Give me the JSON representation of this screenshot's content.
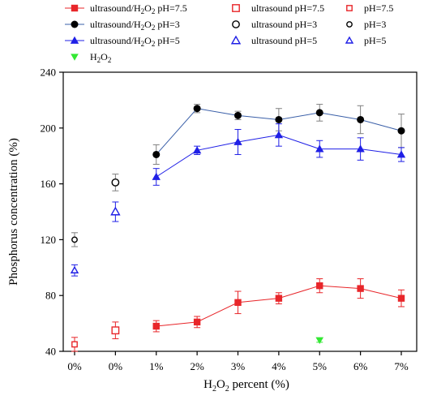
{
  "chart_data": {
    "type": "line",
    "xlabel": {
      "main": "H",
      "sub": "2",
      "rest": "O",
      "sub2": "2",
      "tail": " percent (%)"
    },
    "ylabel": "Phosphorus concentration (%)",
    "ylim": [
      40,
      240
    ],
    "yticks": [
      40,
      80,
      120,
      160,
      200,
      240
    ],
    "categories": [
      "0%",
      "0%",
      "1%",
      "2%",
      "3%",
      "4%",
      "5%",
      "6%",
      "7%"
    ],
    "grid": false,
    "legend_position": "top",
    "legend": [
      {
        "key": "ultrasound_h2o2_ph75",
        "parts": [
          "ultrasound/H",
          "2",
          "O",
          "2",
          " pH=7.5"
        ]
      },
      {
        "key": "ultrasound_h2o2_ph3",
        "parts": [
          "ultrasound/H",
          "2",
          "O",
          "2",
          " pH=3"
        ]
      },
      {
        "key": "ultrasound_h2o2_ph5",
        "parts": [
          "ultrasound/H",
          "2",
          "O",
          "2",
          " pH=5"
        ]
      },
      {
        "key": "h2o2",
        "parts": [
          "H",
          "2",
          "O",
          "2",
          ""
        ]
      },
      {
        "key": "ultrasound_ph75",
        "parts": [
          "ultrasound pH=7.5"
        ]
      },
      {
        "key": "ultrasound_ph3",
        "parts": [
          "ultrasound pH=3"
        ]
      },
      {
        "key": "ultrasound_ph5",
        "parts": [
          "ultrasound pH=5"
        ]
      },
      {
        "key": "ph75",
        "parts": [
          "pH=7.5"
        ]
      },
      {
        "key": "ph3",
        "parts": [
          "pH=3"
        ]
      },
      {
        "key": "ph5",
        "parts": [
          "pH=5"
        ]
      }
    ],
    "series": [
      {
        "key": "ultrasound_h2o2_ph75",
        "color": "#e8262a",
        "marker": "square-filled",
        "line": true,
        "points": [
          {
            "x": "1%",
            "xi": 2,
            "y": 58,
            "err": 4
          },
          {
            "x": "2%",
            "xi": 3,
            "y": 61,
            "err": 4
          },
          {
            "x": "3%",
            "xi": 4,
            "y": 75,
            "err": 8
          },
          {
            "x": "4%",
            "xi": 5,
            "y": 78,
            "err": 4
          },
          {
            "x": "5%",
            "xi": 6,
            "y": 87,
            "err": 5
          },
          {
            "x": "6%",
            "xi": 7,
            "y": 85,
            "err": 7
          },
          {
            "x": "7%",
            "xi": 8,
            "y": 78,
            "err": 6
          }
        ]
      },
      {
        "key": "ultrasound_h2o2_ph3",
        "color": "#000000",
        "line_color": "#3a5fa8",
        "marker": "circle-filled",
        "line": true,
        "points": [
          {
            "x": "1%",
            "xi": 2,
            "y": 181,
            "err": 7
          },
          {
            "x": "2%",
            "xi": 3,
            "y": 214,
            "err": 3
          },
          {
            "x": "3%",
            "xi": 4,
            "y": 209,
            "err": 3
          },
          {
            "x": "4%",
            "xi": 5,
            "y": 206,
            "err": 8
          },
          {
            "x": "5%",
            "xi": 6,
            "y": 211,
            "err": 6
          },
          {
            "x": "6%",
            "xi": 7,
            "y": 206,
            "err": 10
          },
          {
            "x": "7%",
            "xi": 8,
            "y": 198,
            "err": 12
          }
        ]
      },
      {
        "key": "ultrasound_h2o2_ph5",
        "color": "#1f1fe6",
        "marker": "triangle-filled",
        "line": true,
        "points": [
          {
            "x": "1%",
            "xi": 2,
            "y": 165,
            "err": 6
          },
          {
            "x": "2%",
            "xi": 3,
            "y": 184,
            "err": 3
          },
          {
            "x": "3%",
            "xi": 4,
            "y": 190,
            "err": 9
          },
          {
            "x": "4%",
            "xi": 5,
            "y": 195,
            "err": 8
          },
          {
            "x": "5%",
            "xi": 6,
            "y": 185,
            "err": 6
          },
          {
            "x": "6%",
            "xi": 7,
            "y": 185,
            "err": 8
          },
          {
            "x": "7%",
            "xi": 8,
            "y": 181,
            "err": 5
          }
        ]
      },
      {
        "key": "h2o2",
        "color": "#33e833",
        "marker": "triangle-down-filled",
        "line": false,
        "points": [
          {
            "x": "5%",
            "xi": 6,
            "y": 48,
            "err": 1.5
          }
        ]
      },
      {
        "key": "ultrasound_ph75",
        "color": "#e8262a",
        "marker": "square-open",
        "line": false,
        "points": [
          {
            "x": "0%",
            "xi": 1,
            "y": 55,
            "err": 6
          }
        ]
      },
      {
        "key": "ultrasound_ph3",
        "color": "#000000",
        "marker": "circle-open",
        "line": false,
        "points": [
          {
            "x": "0%",
            "xi": 1,
            "y": 161,
            "err": 6
          }
        ]
      },
      {
        "key": "ultrasound_ph5",
        "color": "#1f1fe6",
        "marker": "triangle-open",
        "line": false,
        "points": [
          {
            "x": "0%",
            "xi": 1,
            "y": 140,
            "err": 7
          }
        ]
      },
      {
        "key": "ph75",
        "color": "#e8262a",
        "marker": "square-open-small",
        "line": false,
        "points": [
          {
            "x": "0%",
            "xi": 0,
            "y": 45,
            "err": 5
          }
        ]
      },
      {
        "key": "ph3",
        "color": "#000000",
        "marker": "circle-open-small",
        "line": false,
        "points": [
          {
            "x": "0%",
            "xi": 0,
            "y": 120,
            "err": 5
          }
        ]
      },
      {
        "key": "ph5",
        "color": "#1f1fe6",
        "marker": "triangle-open-small",
        "line": false,
        "points": [
          {
            "x": "0%",
            "xi": 0,
            "y": 98,
            "err": 4
          }
        ]
      }
    ]
  }
}
